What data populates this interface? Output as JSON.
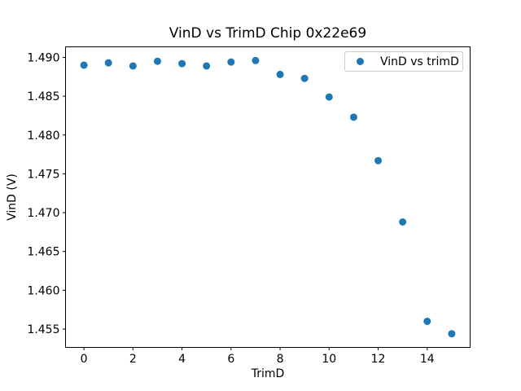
{
  "figure": {
    "title": "VinD vs TrimD Chip 0x22e69",
    "background_color": "#ffffff",
    "text_color": "#000000",
    "spine_color": "#000000",
    "legend_border_color": "#cccccc"
  },
  "legend": {
    "label": "VinD vs trimD",
    "marker_icon": "filled-circle",
    "marker_color": "#1f77b4",
    "position": "upper right"
  },
  "chart_data": {
    "type": "scatter",
    "title": "VinD vs TrimD Chip 0x22e69",
    "xlabel": "TrimD",
    "ylabel": "VinD (V)",
    "series": [
      {
        "name": "VinD vs trimD",
        "marker": "circle",
        "color": "#1f77b4",
        "x": [
          0,
          1,
          2,
          3,
          4,
          5,
          6,
          7,
          8,
          9,
          10,
          11,
          12,
          13,
          14,
          15
        ],
        "y": [
          1.489,
          1.4893,
          1.4889,
          1.4895,
          1.4892,
          1.4889,
          1.4894,
          1.4896,
          1.4878,
          1.4873,
          1.4849,
          1.4823,
          1.4767,
          1.4688,
          1.456,
          1.4544
        ]
      }
    ],
    "xlim": [
      -0.75,
      15.75
    ],
    "ylim": [
      1.45264,
      1.49136
    ],
    "xticks": [
      0,
      2,
      4,
      6,
      8,
      10,
      12,
      14
    ],
    "yticks": [
      1.455,
      1.46,
      1.465,
      1.47,
      1.475,
      1.48,
      1.485,
      1.49
    ],
    "ytick_labels": [
      "1.455",
      "1.460",
      "1.465",
      "1.470",
      "1.475",
      "1.480",
      "1.485",
      "1.490"
    ],
    "grid": false,
    "legend_position": "upper right",
    "marker_radius_px": 4.5
  }
}
